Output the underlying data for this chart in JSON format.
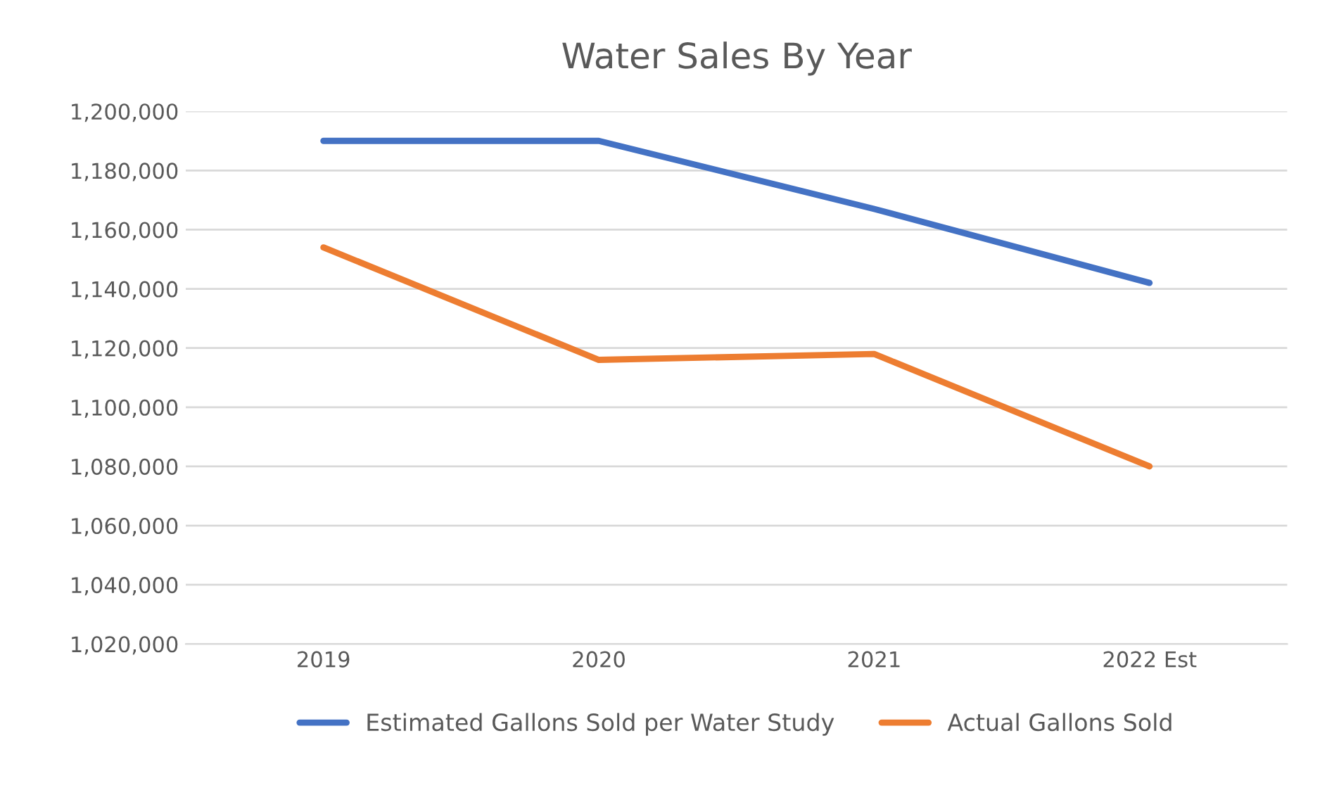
{
  "chart_data": {
    "type": "line",
    "title": "Water Sales By Year",
    "categories": [
      "2019",
      "2020",
      "2021",
      "2022 Est"
    ],
    "series": [
      {
        "name": "Estimated Gallons Sold per Water Study",
        "color": "#4472c4",
        "values": [
          1190000,
          1190000,
          1167000,
          1142000
        ]
      },
      {
        "name": "Actual Gallons Sold",
        "color": "#ed7d31",
        "values": [
          1154000,
          1116000,
          1118000,
          1080000
        ]
      }
    ],
    "ylim": [
      1020000,
      1200000
    ],
    "yticks": [
      {
        "value": 1020000,
        "label": "1,020,000"
      },
      {
        "value": 1040000,
        "label": "1,040,000"
      },
      {
        "value": 1060000,
        "label": "1,060,000"
      },
      {
        "value": 1080000,
        "label": "1,080,000"
      },
      {
        "value": 1100000,
        "label": "1,100,000"
      },
      {
        "value": 1120000,
        "label": "1,120,000"
      },
      {
        "value": 1140000,
        "label": "1,140,000"
      },
      {
        "value": 1160000,
        "label": "1,160,000"
      },
      {
        "value": 1180000,
        "label": "1,180,000"
      },
      {
        "value": 1200000,
        "label": "1,200,000"
      }
    ],
    "grid": "y",
    "legend": "bottom",
    "marker": "none",
    "line_style": "solid"
  }
}
